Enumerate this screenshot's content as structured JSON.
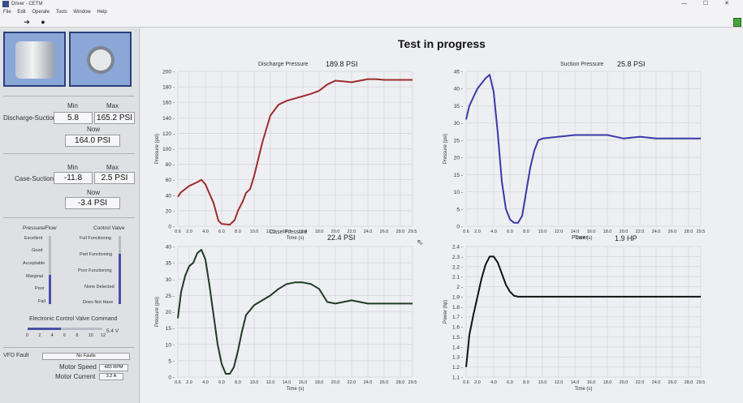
{
  "window": {
    "title": "Driver - CETM",
    "controls": "— ☐ ✕"
  },
  "menu": [
    "File",
    "Edit",
    "Operate",
    "Tools",
    "Window",
    "Help"
  ],
  "toolbar": {
    "run_icon": "arrow-right-icon",
    "stop_icon": "stop-icon"
  },
  "main": {
    "title": "Test in progress"
  },
  "discharge_suction": {
    "label": "Discharge-Suction",
    "min_label": "Min",
    "max_label": "Max",
    "now_label": "Now",
    "min": "5.8",
    "max": "165.2 PSI",
    "now": "164.0 PSI"
  },
  "case_suction": {
    "label": "Case-Suction",
    "min_label": "Min",
    "max_label": "Max",
    "now_label": "Now",
    "min": "-11.8",
    "max": "2.5 PSI",
    "now": "-3.4 PSI"
  },
  "pressure_flow": {
    "title": "Pressure/Flow",
    "items": [
      "Excellent",
      "Good",
      "Acceptable",
      "Marginal",
      "Poor",
      "Fail"
    ]
  },
  "control_valve": {
    "title": "Control Valve",
    "items": [
      "Full Functioning",
      "Part Functioning",
      "Poor Functioning",
      "None Detected",
      "Does Not Have"
    ]
  },
  "ecv": {
    "title": "Electronic Control Valve Command",
    "ticks": [
      "0",
      "2",
      "4",
      "6",
      "8",
      "10",
      "12"
    ],
    "value_text": "5.4 V",
    "level": 5.4
  },
  "status": {
    "vfd_label": "VFD Fault",
    "vfd_value": "No Faults",
    "speed_label": "Motor Speed",
    "speed_value": "483 RPM",
    "current_label": "Motor Current",
    "current_value": "3.2 A"
  },
  "chart_data": [
    {
      "type": "line",
      "title": "Discharge Pressure",
      "value_text": "189.8 PSI",
      "xlabel": "Time (s)",
      "ylabel": "Pressure (psi)",
      "xlim": [
        0.6,
        29.5
      ],
      "ylim": [
        0,
        200
      ],
      "xticks": [
        "0.6",
        "2.0",
        "4.0",
        "6.0",
        "8.0",
        "10.0",
        "12.0",
        "14.0",
        "16.0",
        "18.0",
        "20.0",
        "22.0",
        "24.0",
        "26.0",
        "28.0",
        "29.5"
      ],
      "yticks": [
        "0",
        "20",
        "40",
        "60",
        "80",
        "100",
        "120",
        "140",
        "160",
        "180",
        "200"
      ],
      "color": "#9e2d2d",
      "x": [
        0.6,
        1.0,
        1.5,
        2.0,
        3.0,
        3.5,
        4.0,
        5.0,
        5.6,
        6.0,
        7.0,
        7.6,
        8.0,
        8.6,
        9.0,
        9.5,
        10.0,
        11.0,
        12.0,
        13.0,
        14.0,
        15.0,
        16.0,
        17.0,
        18.0,
        19.0,
        20.0,
        21.0,
        22.0,
        23.0,
        24.0,
        25.0,
        26.0,
        27.0,
        28.0,
        29.5
      ],
      "y": [
        38,
        44,
        48,
        52,
        57,
        60,
        54,
        30,
        7,
        3,
        2,
        8,
        20,
        32,
        43,
        48,
        65,
        108,
        143,
        157,
        162,
        165,
        168,
        171,
        175,
        183,
        188,
        187,
        186,
        188,
        190,
        190,
        189,
        189,
        189,
        189
      ]
    },
    {
      "type": "line",
      "title": "Suction Pressure",
      "value_text": "25.8 PSI",
      "xlabel": "Time (s)",
      "ylabel": "Pressure (psi)",
      "xlim": [
        0.6,
        29.5
      ],
      "ylim": [
        0,
        45
      ],
      "xticks": [
        "0.6",
        "2.0",
        "4.0",
        "6.0",
        "8.0",
        "10.0",
        "12.0",
        "14.0",
        "16.0",
        "18.0",
        "20.0",
        "22.0",
        "24.0",
        "26.0",
        "28.0",
        "29.5"
      ],
      "yticks": [
        "0",
        "5",
        "10",
        "15",
        "20",
        "25",
        "30",
        "35",
        "40",
        "45"
      ],
      "color": "#3a3aa8",
      "x": [
        0.6,
        1.0,
        2.0,
        3.0,
        3.5,
        4.0,
        4.5,
        5.0,
        5.5,
        6.0,
        6.5,
        7.0,
        7.5,
        8.0,
        8.5,
        9.0,
        9.5,
        10.0,
        12.0,
        14.0,
        16.0,
        18.0,
        20.0,
        22.0,
        24.0,
        26.0,
        28.0,
        29.5
      ],
      "y": [
        31,
        35,
        40,
        43,
        44,
        39,
        27,
        13,
        5,
        2,
        1,
        1,
        3,
        10,
        17,
        22,
        25,
        25.5,
        26,
        26.5,
        26.5,
        26.5,
        25.5,
        26,
        25.5,
        25.5,
        25.5,
        25.5
      ]
    },
    {
      "type": "line",
      "title": "Case Pressure",
      "value_text": "22.4 PSI",
      "xlabel": "Time (s)",
      "ylabel": "Pressure (psi)",
      "xlim": [
        0.6,
        29.5
      ],
      "ylim": [
        0,
        40
      ],
      "xticks": [
        "0.6",
        "2.0",
        "4.0",
        "6.0",
        "8.0",
        "10.0",
        "12.0",
        "14.0",
        "16.0",
        "18.0",
        "20.0",
        "22.0",
        "24.0",
        "26.0",
        "28.0",
        "29.5"
      ],
      "yticks": [
        "0",
        "5",
        "10",
        "15",
        "20",
        "25",
        "30",
        "35",
        "40"
      ],
      "color": "#1f3a22",
      "x": [
        0.6,
        1.0,
        1.5,
        2.0,
        2.5,
        3.0,
        3.5,
        4.0,
        4.5,
        5.0,
        5.5,
        6.0,
        6.5,
        7.0,
        7.5,
        8.0,
        8.5,
        9.0,
        9.5,
        10.0,
        11.0,
        12.0,
        13.0,
        14.0,
        15.0,
        16.0,
        17.0,
        18.0,
        19.0,
        20.0,
        21.0,
        22.0,
        23.0,
        24.0,
        25.0,
        26.0,
        27.0,
        28.0,
        29.5
      ],
      "y": [
        18,
        26,
        31,
        34,
        35,
        38,
        39,
        36,
        28,
        19,
        10,
        4,
        1,
        1,
        3,
        8,
        14,
        19,
        20.5,
        22,
        23.5,
        25,
        27,
        28.5,
        29,
        29,
        28.5,
        27,
        23,
        22.5,
        23,
        23.5,
        23,
        22.5,
        22.5,
        22.5,
        22.5,
        22.5,
        22.5
      ]
    },
    {
      "type": "line",
      "title": "Power",
      "value_text": "1.9 HP",
      "xlabel": "Time (s)",
      "ylabel": "Power (hp)",
      "xlim": [
        0.6,
        29.5
      ],
      "ylim": [
        1.1,
        2.4
      ],
      "xticks": [
        "0.6",
        "2.0",
        "4.0",
        "6.0",
        "8.0",
        "10.0",
        "12.0",
        "14.0",
        "16.0",
        "18.0",
        "20.0",
        "22.0",
        "24.0",
        "26.0",
        "28.0",
        "29.5"
      ],
      "yticks": [
        "1.1",
        "1.2",
        "1.3",
        "1.4",
        "1.5",
        "1.6",
        "1.7",
        "1.8",
        "1.9",
        "2",
        "2.1",
        "2.2",
        "2.3",
        "2.4"
      ],
      "color": "#111111",
      "x": [
        0.6,
        0.8,
        1.0,
        1.5,
        2.0,
        2.5,
        3.0,
        3.5,
        4.0,
        4.5,
        5.0,
        5.5,
        6.0,
        6.5,
        7.0,
        8.0,
        10.0,
        14.0,
        18.0,
        22.0,
        26.0,
        29.5
      ],
      "y": [
        1.2,
        1.35,
        1.52,
        1.72,
        1.9,
        2.08,
        2.22,
        2.3,
        2.3,
        2.24,
        2.13,
        2.02,
        1.95,
        1.91,
        1.9,
        1.9,
        1.9,
        1.9,
        1.9,
        1.9,
        1.9,
        1.9
      ]
    }
  ]
}
